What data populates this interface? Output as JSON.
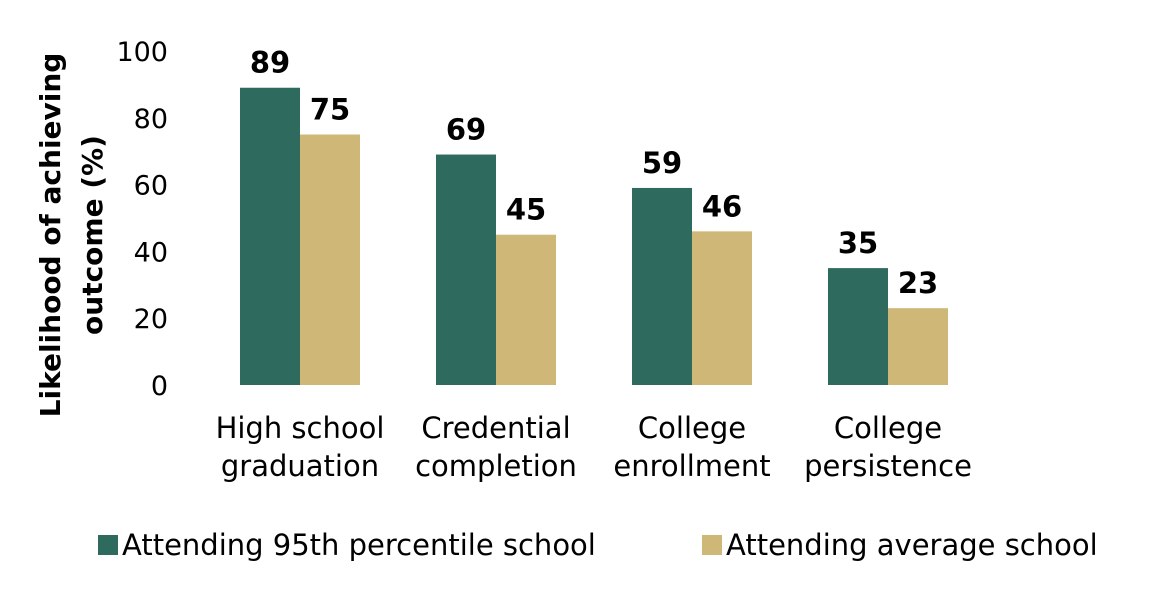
{
  "chart_data": {
    "type": "bar",
    "categories": [
      [
        "High school",
        "graduation"
      ],
      [
        "Credential",
        "completion"
      ],
      [
        "College",
        "enrollment"
      ],
      [
        "College",
        "persistence"
      ]
    ],
    "series": [
      {
        "name": "Attending 95th percentile school",
        "color": "#2e6b5e",
        "values": [
          89,
          69,
          59,
          35
        ]
      },
      {
        "name": "Attending average school",
        "color": "#cfb877",
        "values": [
          75,
          45,
          46,
          23
        ]
      }
    ],
    "ylabel": [
      "Likelihood of achieving",
      "outcome  (%)"
    ],
    "ylim": [
      0,
      100
    ],
    "yticks": [
      0,
      20,
      40,
      60,
      80,
      100
    ],
    "grid": false,
    "legend": "bottom"
  }
}
